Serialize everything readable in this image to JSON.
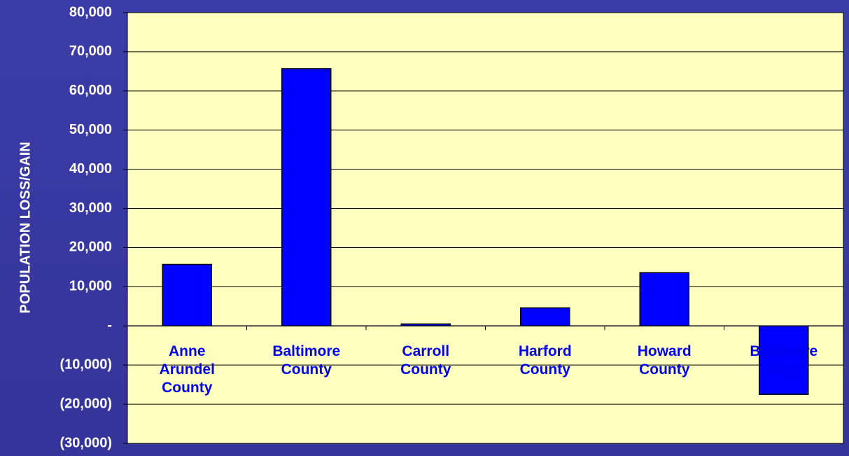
{
  "chart_data": {
    "type": "bar",
    "y_label": "POPULATION LOSS/GAIN",
    "categories": [
      "Anne Arundel County",
      "Baltimore County",
      "Carroll County",
      "Harford County",
      "Howard County",
      "Baltimore City"
    ],
    "values": [
      15700,
      65700,
      500,
      4600,
      13600,
      -17500
    ],
    "color": "#0000ff",
    "ylim": [
      -30000,
      80000
    ],
    "yticks": [
      {
        "value": -30000,
        "label": "(30,000)"
      },
      {
        "value": -20000,
        "label": "(20,000)"
      },
      {
        "value": -10000,
        "label": "(10,000)"
      },
      {
        "value": 0,
        "label": "-"
      },
      {
        "value": 10000,
        "label": "10,000"
      },
      {
        "value": 20000,
        "label": "20,000"
      },
      {
        "value": 30000,
        "label": "30,000"
      },
      {
        "value": 40000,
        "label": "40,000"
      },
      {
        "value": 50000,
        "label": "50,000"
      },
      {
        "value": 60000,
        "label": "60,000"
      },
      {
        "value": 70000,
        "label": "70,000"
      },
      {
        "value": 80000,
        "label": "80,000"
      }
    ],
    "grid": true
  }
}
